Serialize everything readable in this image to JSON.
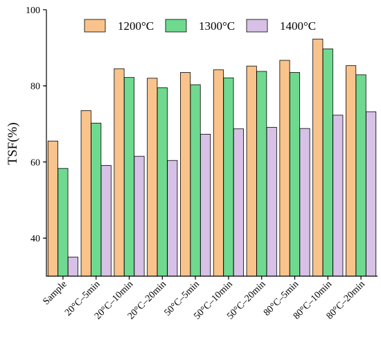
{
  "chart_data": {
    "type": "bar",
    "categories": [
      "Sample",
      "20°C–5min",
      "20°C–10min",
      "20°C–20min",
      "50°C–5min",
      "50°C–10min",
      "50°C–20min",
      "80°C–5min",
      "80°C–10min",
      "80°C–20min"
    ],
    "series": [
      {
        "name": "1200°C",
        "color": "#f9c38b",
        "values": [
          65.5,
          73.5,
          84.5,
          82.0,
          83.5,
          84.2,
          85.2,
          86.7,
          92.3,
          85.3
        ]
      },
      {
        "name": "1300°C",
        "color": "#6fd98f",
        "values": [
          58.3,
          70.2,
          82.2,
          79.5,
          80.3,
          82.1,
          83.8,
          83.5,
          89.7,
          82.9
        ]
      },
      {
        "name": "1400°C",
        "color": "#d7c1e6",
        "values": [
          35.0,
          59.1,
          61.5,
          60.4,
          67.3,
          68.7,
          69.1,
          68.8,
          72.3,
          73.2
        ]
      }
    ],
    "ylabel": "TSF(%)",
    "xlabel": "",
    "ylim": [
      30,
      100
    ],
    "yticks": [
      40,
      60,
      80,
      100
    ],
    "legend_position": "top-center"
  }
}
